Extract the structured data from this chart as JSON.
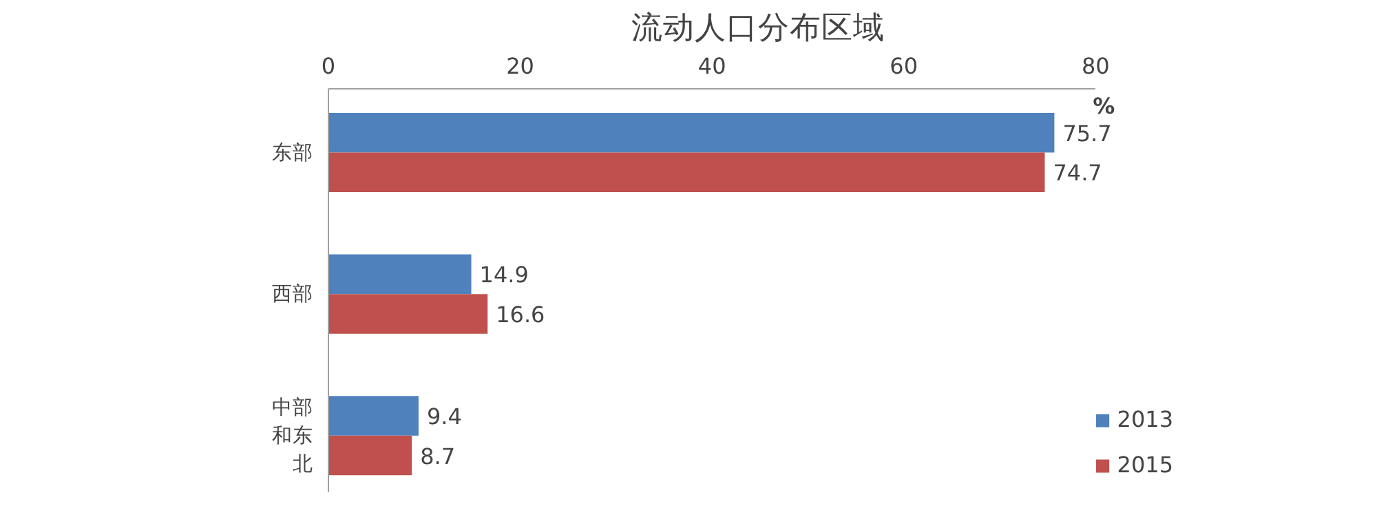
{
  "chart_data": {
    "type": "bar",
    "orientation": "horizontal",
    "title": "流动人口分布区域",
    "xlabel": "%",
    "categories": [
      "东部",
      "西部",
      "中部和东北"
    ],
    "series": [
      {
        "name": "2013",
        "color": "#4f81bd",
        "values": [
          75.7,
          14.9,
          9.4
        ]
      },
      {
        "name": "2015",
        "color": "#c0504d",
        "values": [
          74.7,
          16.6,
          8.7
        ]
      }
    ],
    "xlim": [
      0,
      80
    ],
    "xticks": [
      0,
      20,
      40,
      60,
      80
    ],
    "data_labels": true,
    "grid": false,
    "legend": "bottom right"
  }
}
